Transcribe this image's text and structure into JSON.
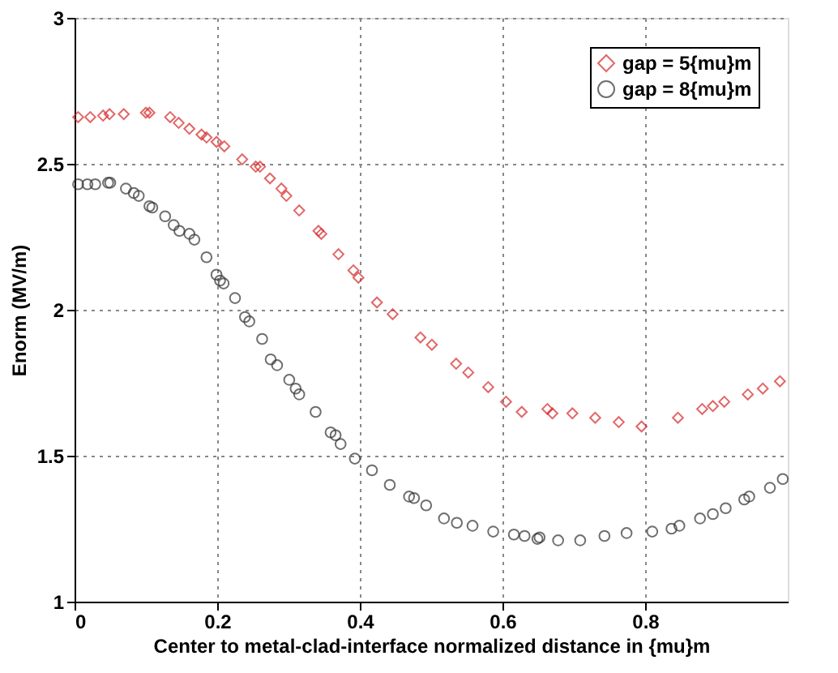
{
  "chart_data": {
    "type": "scatter",
    "xlabel": "Center to metal-clad-interface normalized distance in {mu}m",
    "ylabel": "Enorm (MV/m)",
    "xlim": [
      0,
      1
    ],
    "xticks": [
      0,
      0.2,
      0.4,
      0.6,
      0.8
    ],
    "ylim": [
      1,
      3
    ],
    "yticks": [
      1,
      1.5,
      2,
      2.5,
      3
    ],
    "grid": true,
    "legend": "top right",
    "series": [
      {
        "name": "gap = 5{mu}m",
        "color": "#d62728",
        "marker": "diamond",
        "x": [
          0.005,
          0.022,
          0.04,
          0.049,
          0.069,
          0.1,
          0.105,
          0.134,
          0.146,
          0.161,
          0.178,
          0.185,
          0.199,
          0.21,
          0.235,
          0.254,
          0.26,
          0.274,
          0.29,
          0.297,
          0.315,
          0.342,
          0.346,
          0.37,
          0.391,
          0.398,
          0.424,
          0.446,
          0.485,
          0.501,
          0.535,
          0.552,
          0.58,
          0.605,
          0.627,
          0.663,
          0.67,
          0.698,
          0.73,
          0.763,
          0.795,
          0.846,
          0.88,
          0.895,
          0.911,
          0.944,
          0.965,
          0.989
        ],
        "values": [
          2.66,
          2.66,
          2.665,
          2.67,
          2.67,
          2.675,
          2.675,
          2.66,
          2.64,
          2.62,
          2.6,
          2.59,
          2.575,
          2.56,
          2.515,
          2.49,
          2.49,
          2.45,
          2.415,
          2.39,
          2.34,
          2.27,
          2.26,
          2.19,
          2.135,
          2.11,
          2.025,
          1.985,
          1.905,
          1.88,
          1.815,
          1.785,
          1.735,
          1.685,
          1.65,
          1.66,
          1.645,
          1.645,
          1.63,
          1.615,
          1.6,
          1.63,
          1.66,
          1.67,
          1.685,
          1.71,
          1.73,
          1.755
        ]
      },
      {
        "name": "gap = 8{mu}m",
        "color": "#333333",
        "marker": "circle",
        "x": [
          0.005,
          0.018,
          0.029,
          0.047,
          0.05,
          0.072,
          0.083,
          0.09,
          0.105,
          0.109,
          0.127,
          0.139,
          0.147,
          0.161,
          0.168,
          0.185,
          0.199,
          0.204,
          0.209,
          0.225,
          0.239,
          0.245,
          0.263,
          0.275,
          0.284,
          0.301,
          0.31,
          0.315,
          0.338,
          0.359,
          0.366,
          0.373,
          0.393,
          0.417,
          0.442,
          0.469,
          0.476,
          0.493,
          0.518,
          0.536,
          0.558,
          0.587,
          0.616,
          0.631,
          0.649,
          0.652,
          0.678,
          0.709,
          0.743,
          0.774,
          0.81,
          0.837,
          0.848,
          0.877,
          0.895,
          0.913,
          0.939,
          0.946,
          0.975,
          0.993
        ],
        "values": [
          2.43,
          2.43,
          2.43,
          2.435,
          2.435,
          2.415,
          2.4,
          2.39,
          2.355,
          2.35,
          2.32,
          2.29,
          2.27,
          2.26,
          2.24,
          2.18,
          2.12,
          2.1,
          2.09,
          2.04,
          1.975,
          1.96,
          1.9,
          1.83,
          1.81,
          1.76,
          1.73,
          1.71,
          1.65,
          1.58,
          1.57,
          1.54,
          1.49,
          1.45,
          1.4,
          1.36,
          1.355,
          1.33,
          1.285,
          1.27,
          1.26,
          1.24,
          1.23,
          1.225,
          1.215,
          1.22,
          1.21,
          1.21,
          1.225,
          1.235,
          1.24,
          1.25,
          1.26,
          1.285,
          1.3,
          1.32,
          1.35,
          1.36,
          1.39,
          1.42
        ]
      }
    ]
  }
}
